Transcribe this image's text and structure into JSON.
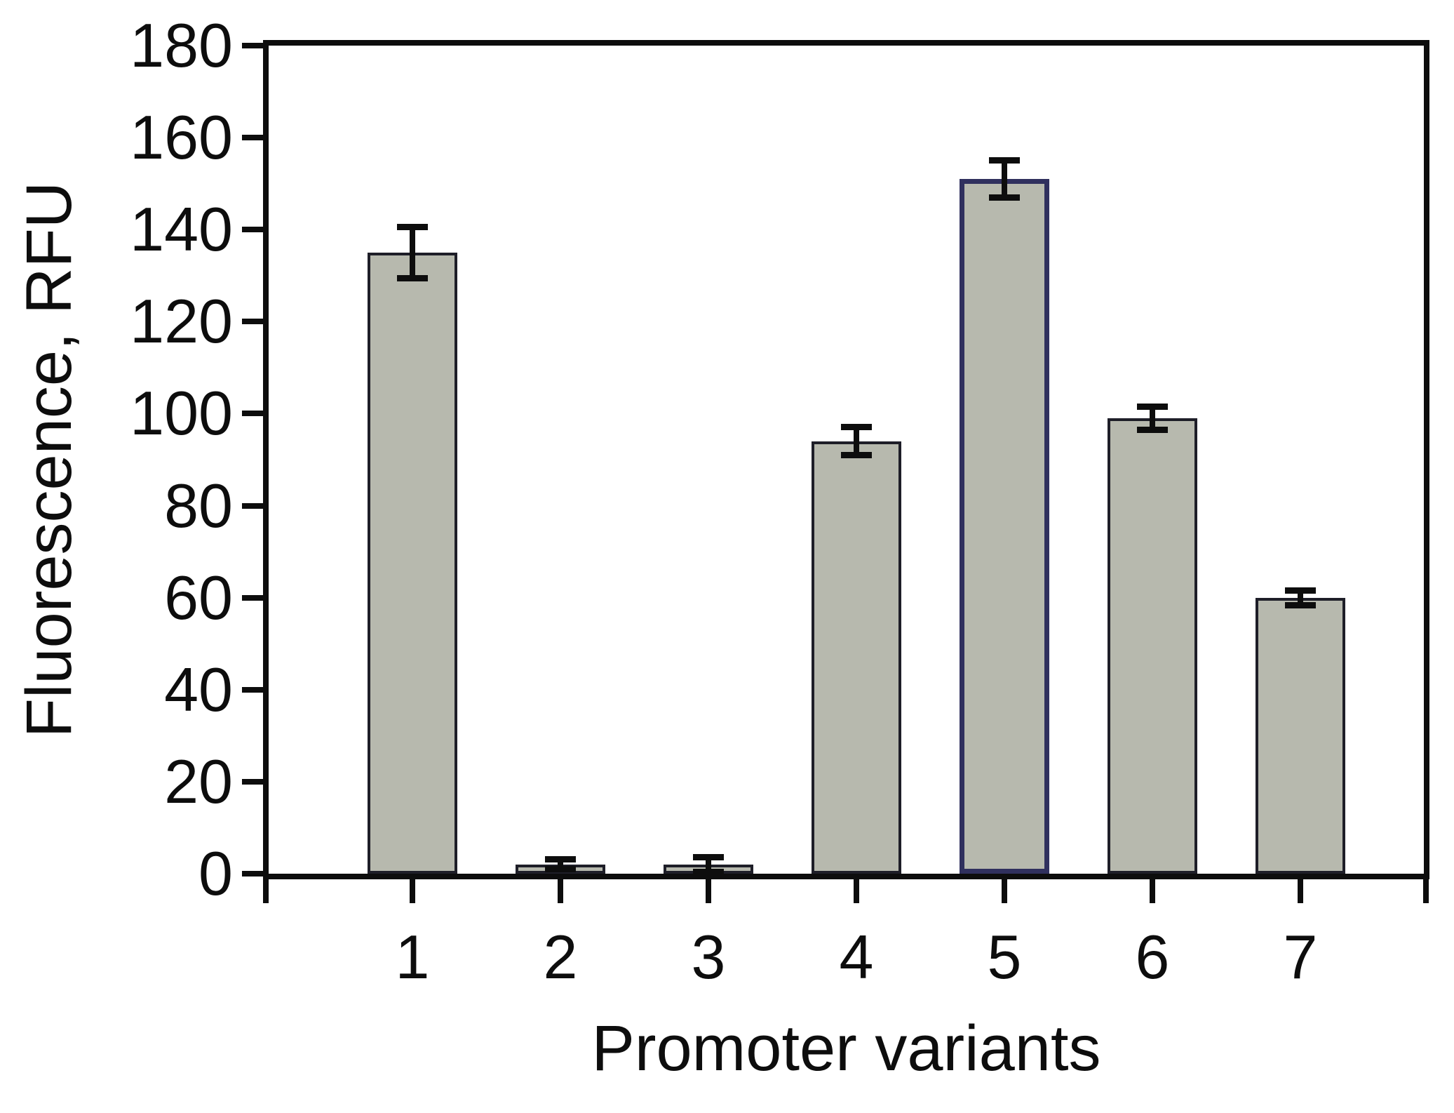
{
  "chart_data": {
    "type": "bar",
    "title": "",
    "xlabel": "Promoter variants",
    "ylabel": "Fluorescence, RFU",
    "categories": [
      "1",
      "2",
      "3",
      "4",
      "5",
      "6",
      "7"
    ],
    "values": [
      135,
      2,
      2,
      94,
      151,
      99,
      60
    ],
    "error_bars": [
      5.5,
      1,
      1.5,
      3,
      4,
      2.5,
      1.5
    ],
    "ylim": [
      0,
      180
    ],
    "yticks": [
      0,
      20,
      40,
      60,
      80,
      100,
      120,
      140,
      160,
      180
    ],
    "grid": false,
    "legend": null,
    "frame": true,
    "bar_fill_color": "#b7b9ae",
    "bar_outline_color": "#1e1e28",
    "highlight_bar_index": 4,
    "highlight_outline_color": "#30305e",
    "axis_color": "#0d0d0d",
    "text_color": "#0d0d0d",
    "background_color": "#ffffff"
  }
}
